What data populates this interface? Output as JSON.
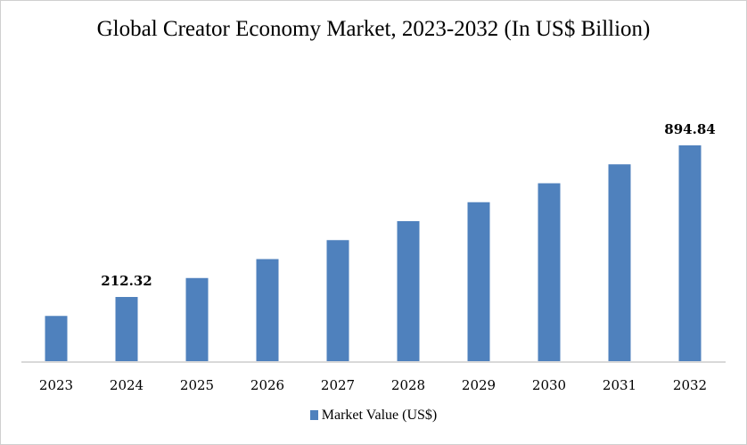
{
  "chart_data": {
    "type": "bar",
    "title": "Global Creator Economy Market, 2023-2032 (In US$ Billion)",
    "categories": [
      "2023",
      "2024",
      "2025",
      "2026",
      "2027",
      "2028",
      "2029",
      "2030",
      "2031",
      "2032"
    ],
    "series": [
      {
        "name": "Market Value (US$)",
        "color": "#4f81bd",
        "values": [
          127.0,
          212.32,
          297.6,
          382.9,
          468.3,
          553.6,
          638.9,
          724.2,
          809.5,
          894.84
        ]
      }
    ],
    "data_labels": [
      {
        "category": "2024",
        "text": "212.32"
      },
      {
        "category": "2032",
        "text": "894.84"
      }
    ],
    "xlabel": "",
    "ylabel": "",
    "grid": false,
    "y_axis_visible": false,
    "legend_position": "bottom"
  }
}
